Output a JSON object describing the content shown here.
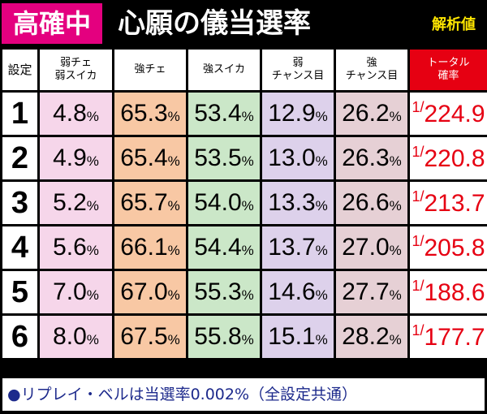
{
  "header": {
    "badge": "高確中",
    "title": "心願の儀当選率",
    "tag": "解析値"
  },
  "table": {
    "columns": [
      "設定",
      "弱チェ 弱スイカ",
      "強チェ",
      "強スイカ",
      "弱 チャンス目",
      "強 チャンス目",
      "トータル 確率"
    ],
    "rows": [
      [
        "1",
        "4.8%",
        "65.3%",
        "53.4%",
        "12.9%",
        "26.2%",
        "1/224.9"
      ],
      [
        "2",
        "4.9%",
        "65.4%",
        "53.5%",
        "13.0%",
        "26.3%",
        "1/220.8"
      ],
      [
        "3",
        "5.2%",
        "65.7%",
        "54.0%",
        "13.3%",
        "26.6%",
        "1/213.7"
      ],
      [
        "4",
        "5.6%",
        "66.1%",
        "54.4%",
        "13.7%",
        "27.0%",
        "1/205.8"
      ],
      [
        "5",
        "7.0%",
        "67.0%",
        "55.3%",
        "14.6%",
        "27.7%",
        "1/188.6"
      ],
      [
        "6",
        "8.0%",
        "67.5%",
        "55.8%",
        "15.1%",
        "28.2%",
        "1/177.7"
      ]
    ]
  },
  "footer": "●リプレイ・ベルは当選率0.002%（全設定共通）"
}
